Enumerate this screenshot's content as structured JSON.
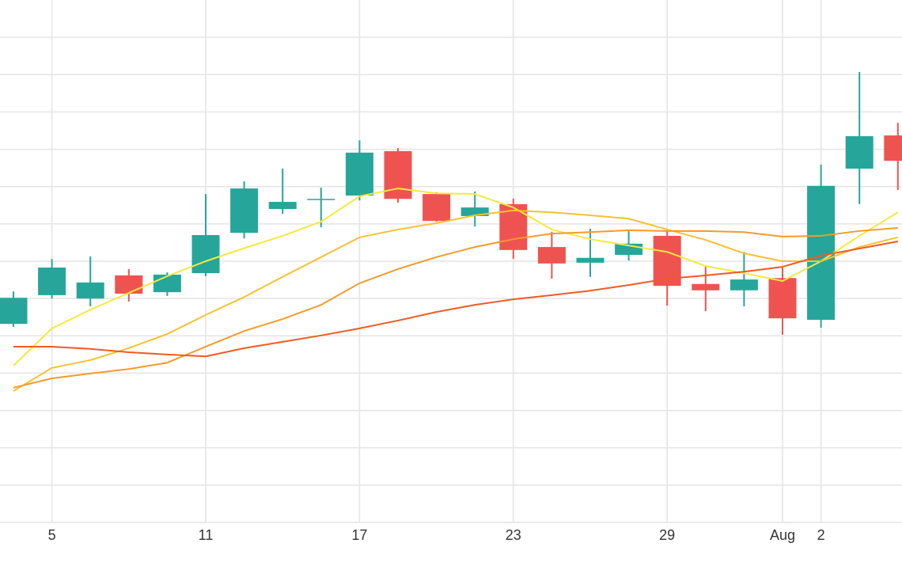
{
  "chart_data": {
    "type": "candlestick",
    "categories": [
      null,
      "5",
      null,
      null,
      null,
      "11",
      null,
      null,
      null,
      "17",
      null,
      null,
      null,
      "23",
      null,
      null,
      null,
      "29",
      null,
      null,
      "Aug",
      "2",
      null,
      null
    ],
    "open": [
      5.32,
      6.09,
      6.0,
      6.62,
      6.17,
      6.68,
      7.76,
      8.4,
      8.65,
      8.76,
      9.95,
      8.8,
      8.21,
      8.53,
      7.38,
      6.96,
      7.17,
      7.68,
      6.39,
      6.22,
      6.55,
      5.43,
      9.48,
      10.37
    ],
    "high": [
      6.19,
      7.06,
      7.13,
      6.79,
      6.7,
      8.8,
      9.14,
      9.48,
      8.97,
      10.24,
      10.03,
      8.85,
      8.87,
      8.68,
      7.79,
      7.87,
      7.83,
      7.85,
      6.85,
      7.25,
      6.83,
      9.59,
      12.07,
      10.71
    ],
    "low": [
      5.24,
      6.0,
      5.79,
      5.92,
      6.07,
      6.6,
      7.61,
      8.27,
      7.91,
      8.63,
      8.57,
      8.06,
      7.93,
      7.06,
      6.53,
      6.58,
      7.02,
      5.81,
      5.66,
      5.79,
      5.03,
      5.22,
      8.53,
      8.91
    ],
    "close": [
      6.02,
      6.83,
      6.43,
      6.13,
      6.64,
      7.7,
      8.95,
      8.59,
      8.67,
      9.91,
      8.67,
      8.08,
      8.44,
      7.3,
      6.94,
      7.09,
      7.47,
      6.34,
      6.22,
      6.51,
      5.47,
      9.02,
      10.35,
      9.69
    ],
    "up_color": "#26a69a",
    "down_color": "#ef5350",
    "series": [
      {
        "color": "#f5e93b",
        "values": [
          4.2,
          5.2,
          5.7,
          6.15,
          6.6,
          7.0,
          7.35,
          7.68,
          8.06,
          8.74,
          8.95,
          8.82,
          8.8,
          8.44,
          7.85,
          7.59,
          7.42,
          7.25,
          6.87,
          6.68,
          6.47,
          7.0,
          7.68,
          8.31
        ]
      },
      {
        "color": "#f7c12e",
        "values": [
          3.52,
          4.14,
          4.35,
          4.67,
          5.05,
          5.56,
          6.04,
          6.58,
          7.11,
          7.64,
          7.85,
          8.02,
          8.23,
          8.36,
          8.31,
          8.23,
          8.14,
          7.85,
          7.57,
          7.21,
          7.0,
          7.0,
          7.38,
          7.64
        ]
      },
      {
        "color": "#f59a2a",
        "values": [
          3.61,
          3.86,
          3.99,
          4.11,
          4.28,
          4.71,
          5.13,
          5.45,
          5.83,
          6.41,
          6.79,
          7.11,
          7.38,
          7.59,
          7.74,
          7.78,
          7.83,
          7.81,
          7.81,
          7.78,
          7.66,
          7.68,
          7.81,
          7.89
        ]
      },
      {
        "color": "#f05a22",
        "values": [
          4.71,
          4.71,
          4.65,
          4.56,
          4.5,
          4.45,
          4.67,
          4.84,
          5.01,
          5.2,
          5.41,
          5.64,
          5.83,
          5.98,
          6.09,
          6.21,
          6.36,
          6.53,
          6.62,
          6.72,
          6.85,
          7.15,
          7.34,
          7.53
        ]
      }
    ],
    "ylim": [
      0,
      14
    ],
    "yticks": [
      0,
      1,
      2,
      3,
      4,
      5,
      6,
      7,
      8,
      9,
      10,
      11,
      12,
      13
    ],
    "grid": true
  }
}
